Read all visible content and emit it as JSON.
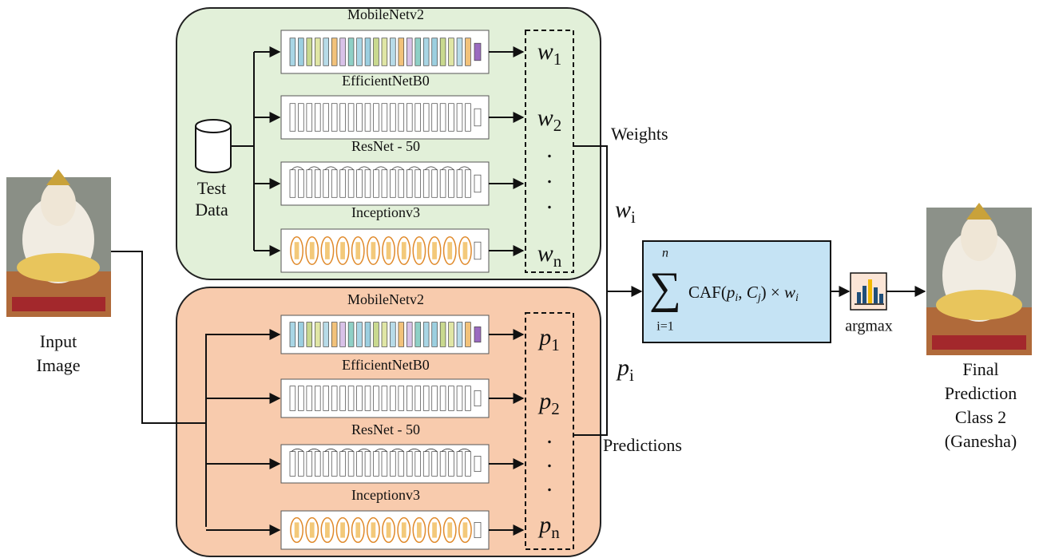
{
  "input": {
    "label": [
      "Input",
      "Image"
    ]
  },
  "weights_panel": {
    "data_label": [
      "Test",
      "Data"
    ],
    "models": [
      "MobileNetv2",
      "EfficientNetB0",
      "ResNet - 50",
      "Inceptionv3"
    ],
    "outputs": [
      {
        "base": "w",
        "sub": "1"
      },
      {
        "base": "w",
        "sub": "2"
      },
      {
        "base": "w",
        "sub": "n"
      }
    ],
    "dots": [
      ".",
      ".",
      "."
    ],
    "label": "Weights",
    "symbol": {
      "base": "w",
      "sub": "i"
    }
  },
  "predictions_panel": {
    "models": [
      "MobileNetv2",
      "EfficientNetB0",
      "ResNet - 50",
      "Inceptionv3"
    ],
    "outputs": [
      {
        "base": "p",
        "sub": "1"
      },
      {
        "base": "p",
        "sub": "2"
      },
      {
        "base": "p",
        "sub": "n"
      }
    ],
    "dots": [
      ".",
      ".",
      "."
    ],
    "label": "Predictions",
    "symbol": {
      "base": "p",
      "sub": "i"
    }
  },
  "formula": {
    "symbol": "∑",
    "upper": "n",
    "lower": "i=1",
    "parts": [
      {
        "text": "CAF("
      },
      {
        "text": "p",
        "sub": "i"
      },
      {
        "text": ", "
      },
      {
        "text": "C",
        "sub": "j"
      },
      {
        "text": ") × "
      },
      {
        "text": "w",
        "sub": "i"
      }
    ]
  },
  "argmax": {
    "label": "argmax"
  },
  "output": {
    "label": [
      "Final",
      "Prediction",
      "Class 2",
      "(Ganesha)"
    ]
  }
}
